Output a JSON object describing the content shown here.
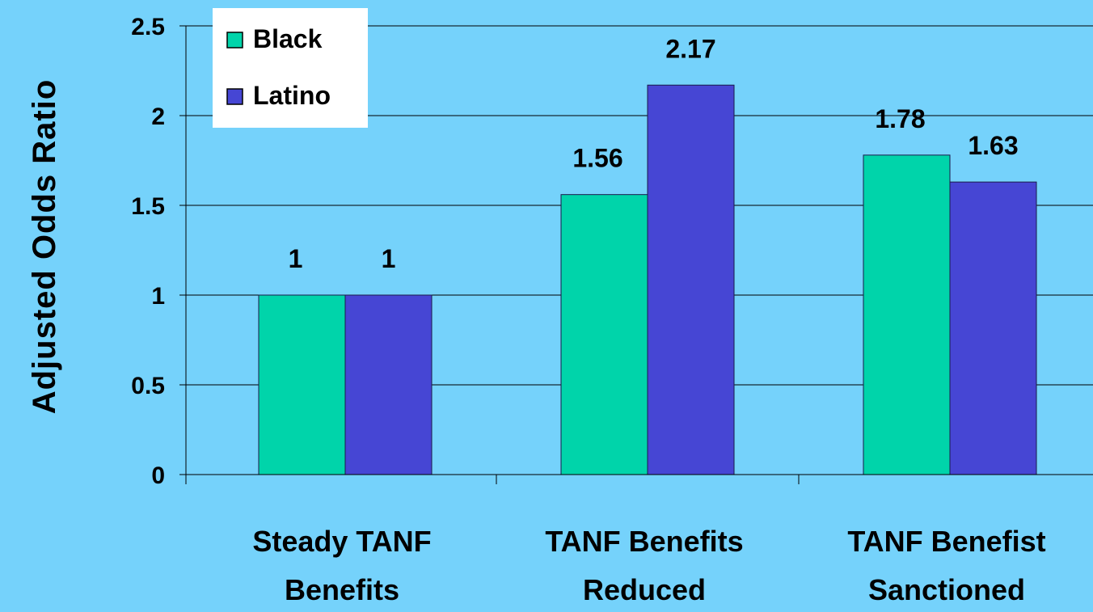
{
  "chart_data": {
    "type": "bar",
    "categories": [
      [
        "Steady TANF",
        "Benefits"
      ],
      [
        "TANF Benefits",
        "Reduced"
      ],
      [
        "TANF Benefist",
        "Sanctioned"
      ]
    ],
    "series": [
      {
        "name": "Black",
        "color": "#00d4aa",
        "values": [
          1,
          1.56,
          1.78
        ],
        "labels": [
          "1",
          "1.56",
          "1.78"
        ]
      },
      {
        "name": "Latino",
        "color": "#4646d4",
        "values": [
          1,
          2.17,
          1.63
        ],
        "labels": [
          "1",
          "2.17",
          "1.63"
        ]
      }
    ],
    "ylabel": "Adjusted Odds Ratio",
    "ylim": [
      0,
      2.5
    ],
    "yticks": [
      {
        "value": 0,
        "label": "0"
      },
      {
        "value": 0.5,
        "label": "0.5"
      },
      {
        "value": 1,
        "label": "1"
      },
      {
        "value": 1.5,
        "label": "1.5"
      },
      {
        "value": 2,
        "label": "2"
      },
      {
        "value": 2.5,
        "label": "2.5"
      }
    ],
    "grid": true,
    "legend": "top-left",
    "background": "#75d2fb",
    "legend_background": "#ffffff"
  }
}
